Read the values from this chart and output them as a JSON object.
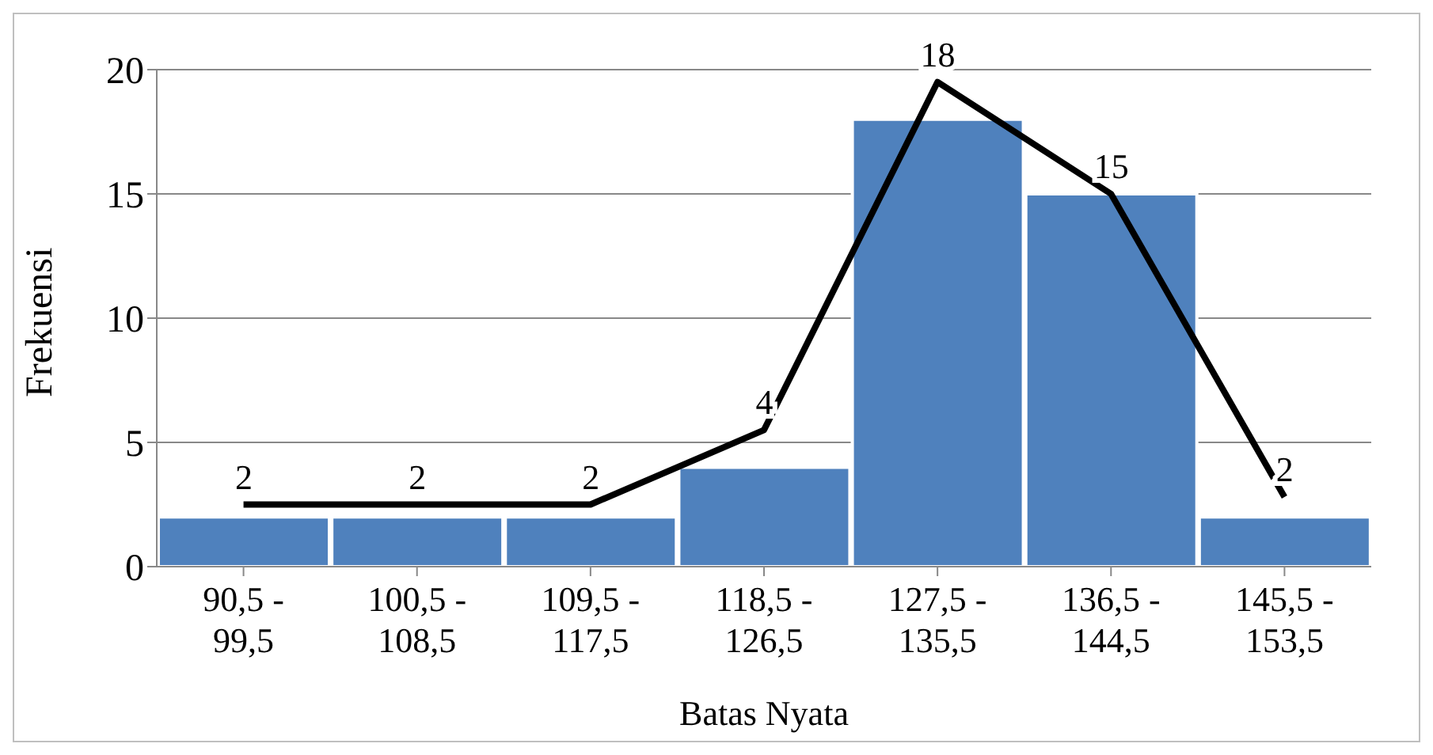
{
  "chart_data": {
    "type": "bar",
    "xlabel": "Batas Nyata",
    "ylabel": "Frekuensi",
    "categories": [
      "90,5 - 99,5",
      "100,5 - 108,5",
      "109,5 - 117,5",
      "118,5 - 126,5",
      "127,5 - 135,5",
      "136,5 - 144,5",
      "145,5 - 153,5"
    ],
    "series": [
      {
        "color": "#4f81bd",
        "values": [
          2,
          2,
          2,
          4,
          18,
          15,
          2
        ],
        "value_labels": [
          "2",
          "2",
          "2",
          "4",
          "18",
          "15",
          "2"
        ]
      },
      {
        "type": "line",
        "color": "#000000",
        "values": [
          2.5,
          2.5,
          2.5,
          5.5,
          19.5,
          15,
          2.8
        ]
      }
    ],
    "ylim": [
      0,
      20
    ],
    "yticks": [
      0,
      5,
      10,
      15,
      20
    ],
    "grid": "y",
    "legend": false,
    "marker": "none",
    "line_style": "solid"
  }
}
